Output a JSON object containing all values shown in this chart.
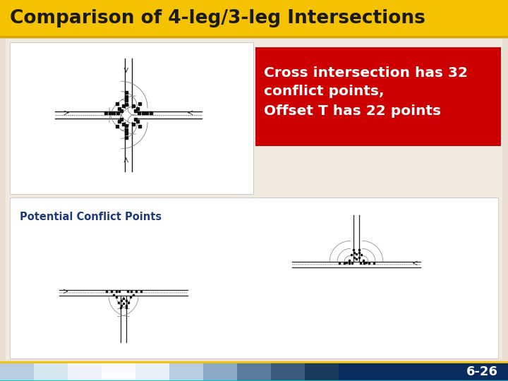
{
  "title": "Comparison of 4-leg/3-leg Intersections",
  "title_bg_color": "#F5C200",
  "title_text_color": "#1a1a1a",
  "slide_bg_color": "#E8DDD0",
  "content_bg_color": "#F0EAE0",
  "red_box_color": "#CC0000",
  "red_box_text_line1": "Cross intersection has 32",
  "red_box_text_line2": "conflict points,",
  "red_box_text_line3": "Offset T has 22 points",
  "red_box_text_color": "#FFFFFF",
  "label_text": "Potential Conflict Points",
  "label_color": "#1F3A7A",
  "slide_number": "6-26",
  "footer_dark_color": "#0A2B5E",
  "footer_segments": [
    "#B0C8E0",
    "#FFFFFF",
    "#FFFFFF",
    "#FFFFFF",
    "#FFFFFF",
    "#B0C8E0",
    "#7090B0",
    "#4A6080",
    "#0A2B5E"
  ],
  "footer_cyan_line": "#00C0C0",
  "footer_gold_line": "#F5C200",
  "top_image_bg": "#FFFFFF",
  "bottom_image_bg": "#FFFFFF"
}
